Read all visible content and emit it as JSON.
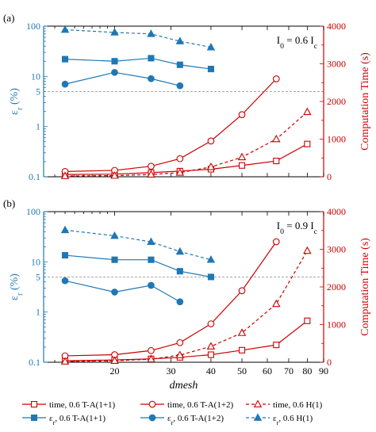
{
  "chart_data": [
    {
      "type": "line",
      "panel_label": "(a)",
      "annotation": "I0 = 0.6 Ic",
      "ylabel_left": "εr (%)",
      "ylabel_right": "Computation Time (s)",
      "yscale_left": "log",
      "ylim_left": [
        0.1,
        100
      ],
      "ylim_right": [
        0,
        4000
      ],
      "left_ticks": [
        "0.1",
        "1",
        "5",
        "10",
        "100"
      ],
      "right_ticks": [
        "0",
        "1000",
        "2000",
        "3000",
        "4000"
      ],
      "reference_line": 5,
      "time_series": [
        {
          "key": "time_ta11",
          "x": [
            14,
            20,
            26,
            32,
            40,
            50,
            64,
            80
          ],
          "y": [
            60,
            70,
            110,
            150,
            200,
            300,
            420,
            870
          ]
        },
        {
          "key": "time_ta12",
          "x": [
            14,
            20,
            26,
            32,
            40,
            50,
            64
          ],
          "y": [
            140,
            170,
            280,
            480,
            950,
            1650,
            2600
          ]
        },
        {
          "key": "time_h1",
          "x": [
            14,
            20,
            26,
            32,
            40,
            50,
            64,
            80
          ],
          "y": [
            20,
            30,
            60,
            110,
            260,
            520,
            1000,
            1720
          ]
        }
      ],
      "error_series": [
        {
          "key": "err_ta11",
          "x": [
            14,
            20,
            26,
            32,
            40
          ],
          "y": [
            22,
            20,
            23,
            17,
            14
          ]
        },
        {
          "key": "err_ta12",
          "x": [
            14,
            20,
            26,
            32
          ],
          "y": [
            7,
            12,
            9,
            6.5
          ]
        },
        {
          "key": "err_h1",
          "x": [
            14,
            20,
            26,
            32,
            40
          ],
          "y": [
            85,
            75,
            70,
            50,
            38
          ]
        }
      ]
    },
    {
      "type": "line",
      "panel_label": "(b)",
      "annotation": "I0 = 0.9 Ic",
      "ylabel_left": "εr (%)",
      "ylabel_right": "Computation Time (s)",
      "xlabel": "dmesh",
      "xscale": "log",
      "xlim": [
        12,
        90
      ],
      "x_ticks": [
        "20",
        "30",
        "40",
        "50",
        "60",
        "70",
        "80",
        "90"
      ],
      "yscale_left": "log",
      "ylim_left": [
        0.1,
        100
      ],
      "ylim_right": [
        0,
        4000
      ],
      "left_ticks": [
        "0.1",
        "1",
        "5",
        "10",
        "100"
      ],
      "right_ticks": [
        "0",
        "1000",
        "2000",
        "3000",
        "4000"
      ],
      "reference_line": 5,
      "time_series": [
        {
          "key": "time_ta11",
          "x": [
            14,
            20,
            26,
            32,
            40,
            50,
            64,
            80
          ],
          "y": [
            40,
            60,
            90,
            130,
            200,
            320,
            460,
            1100
          ]
        },
        {
          "key": "time_ta12",
          "x": [
            14,
            20,
            26,
            32,
            40,
            50,
            64
          ],
          "y": [
            170,
            200,
            310,
            520,
            1020,
            1900,
            3200
          ]
        },
        {
          "key": "time_h1",
          "x": [
            14,
            20,
            26,
            32,
            40,
            50,
            64,
            80
          ],
          "y": [
            20,
            40,
            80,
            190,
            420,
            780,
            1550,
            2960
          ]
        }
      ],
      "error_series": [
        {
          "key": "err_ta11",
          "x": [
            14,
            20,
            26,
            32,
            40
          ],
          "y": [
            13.5,
            11,
            11,
            6.5,
            5
          ]
        },
        {
          "key": "err_ta12",
          "x": [
            14,
            20,
            26,
            32
          ],
          "y": [
            4.2,
            2.5,
            3.4,
            1.6
          ]
        },
        {
          "key": "err_h1",
          "x": [
            14,
            20,
            26,
            32,
            40
          ],
          "y": [
            43,
            33,
            25,
            16,
            11
          ]
        }
      ]
    }
  ],
  "legend": {
    "time_ta11": "time, 0.6 T-A(1+1)",
    "time_ta12": "time, 0.6 T-A(1+2)",
    "time_h1": "time, 0.6 H(1)",
    "err_ta11": "εr, 0.6 T-A(1+1)",
    "err_ta12": "εr, 0.6 T-A(1+2)",
    "err_h1": "εr, 0.6 H(1)"
  },
  "colors": {
    "blue": "#1f78b4",
    "red": "#cc0000",
    "ref": "#888888"
  }
}
